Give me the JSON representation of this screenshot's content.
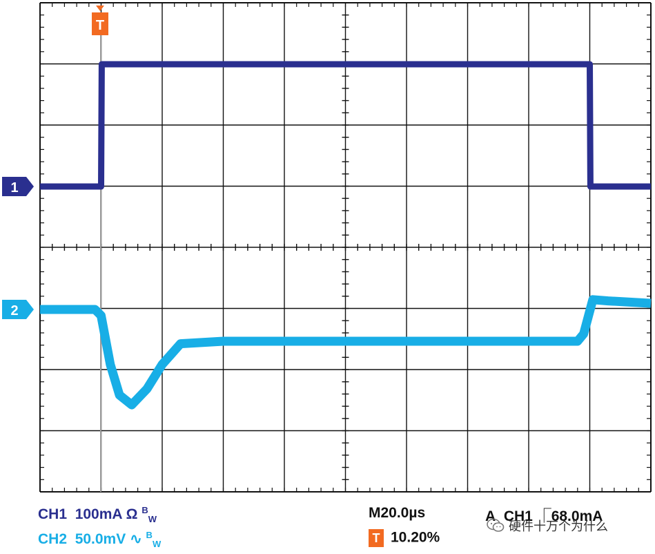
{
  "colors": {
    "ch1": "#2a2f8f",
    "ch2": "#18aee6",
    "trigger": "#f26a21",
    "grid": "#111111"
  },
  "markers": {
    "trigger_label": "T",
    "ch1_label": "1",
    "ch2_label": "2"
  },
  "readouts": {
    "ch1_name": "CH1",
    "ch1_scale": "100mA",
    "ch1_coupling": "Ω",
    "ch1_bw": "B",
    "ch1_bw_sub": "W",
    "ch2_name": "CH2",
    "ch2_scale": "50.0mV",
    "ch2_coupling": "∿",
    "ch2_bw": "B",
    "ch2_bw_sub": "W",
    "timebase": "M20.0µs",
    "trigger_mode": "A",
    "trigger_source": "CH1",
    "trigger_slope": "⎾",
    "trigger_level": "68.0mA",
    "trigger_position_badge": "T",
    "trigger_position": "10.20%"
  },
  "watermark": {
    "icon": "wechat-icon",
    "text": "硬件十万个为什么"
  },
  "chart_data": {
    "type": "line",
    "grid": true,
    "x_divisions": 10,
    "y_divisions": 8,
    "timebase_per_div": "20.0µs",
    "series": [
      {
        "name": "CH1",
        "unit": "mA",
        "scale_per_div": "100mA",
        "x": [
          0,
          20,
          20.2,
          180,
          180.2,
          200
        ],
        "y": [
          0,
          0,
          200,
          200,
          0,
          0
        ]
      },
      {
        "name": "CH2",
        "unit": "mV",
        "scale_per_div": "50.0mV",
        "x": [
          0,
          18,
          20,
          23,
          26,
          30,
          35,
          40,
          46,
          60,
          100,
          140,
          176,
          178,
          181,
          186,
          200
        ],
        "y": [
          0,
          0,
          -5,
          -45,
          -70,
          -78,
          -65,
          -45,
          -28,
          -26,
          -26,
          -26,
          -26,
          -20,
          8,
          7,
          5
        ]
      }
    ]
  }
}
